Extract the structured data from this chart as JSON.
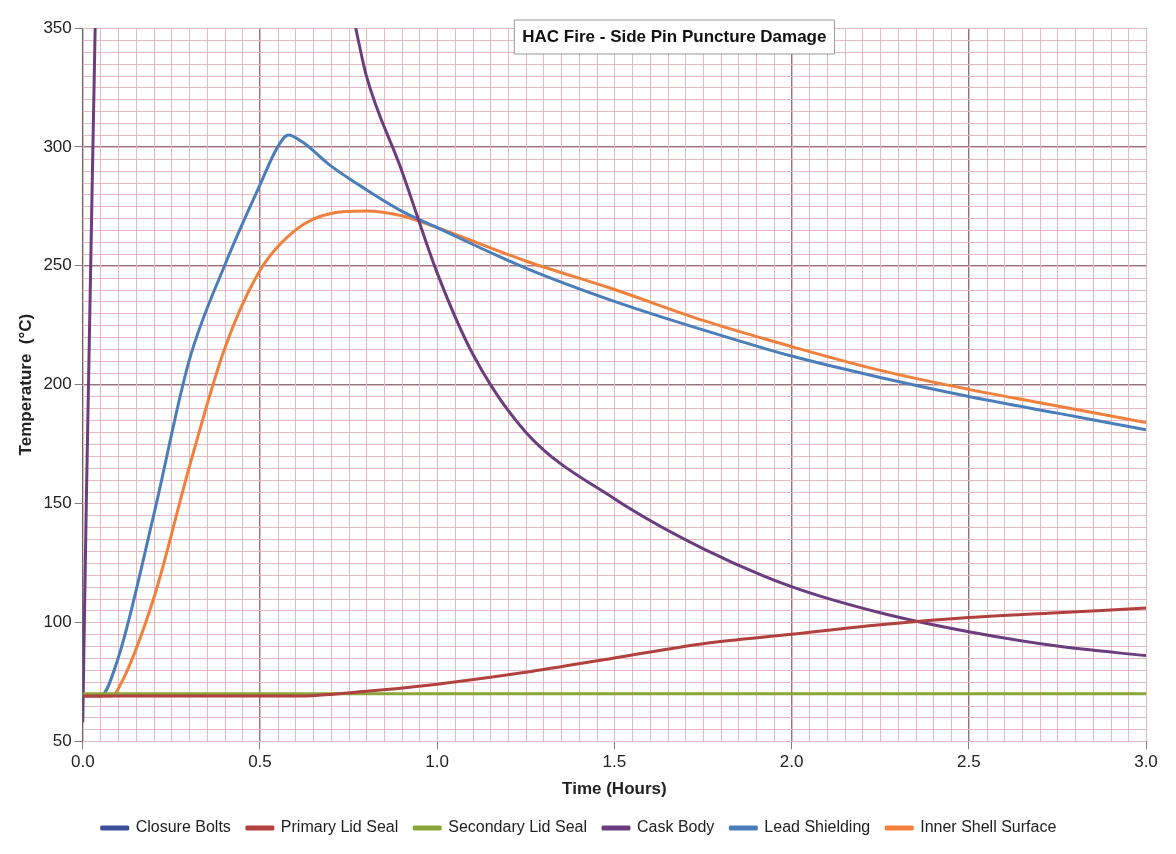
{
  "chart_data": {
    "type": "line",
    "title": "HAC Fire - Side Pin Puncture Damage",
    "xlabel": "Time (Hours)",
    "ylabel": "Temperature  (°C)",
    "xlim": [
      0,
      3
    ],
    "xticks": [
      {
        "value": 0,
        "label": "0.0"
      },
      {
        "value": 0.5,
        "label": "0.5"
      },
      {
        "value": 1,
        "label": "1.0"
      },
      {
        "value": 1.5,
        "label": "1.5"
      },
      {
        "value": 2,
        "label": "2.0"
      },
      {
        "value": 2.5,
        "label": "2.5"
      },
      {
        "value": 3,
        "label": "3.0"
      }
    ],
    "ylim": [
      50,
      350
    ],
    "yticks": [
      50,
      100,
      150,
      200,
      250,
      300,
      350
    ],
    "grid": true,
    "legend": "bottom",
    "marker": "none",
    "line_style": "solid",
    "series": [
      {
        "name": "Closure Bolts",
        "color": "#3b4f9a"
      },
      {
        "name": "Primary Lid Seal",
        "color": "#b0413e",
        "x": [
          0,
          0.6,
          0.8,
          1,
          1.25,
          1.5,
          1.75,
          2,
          2.25,
          2.5,
          2.75,
          3
        ],
        "values": [
          69,
          69,
          71,
          74,
          79,
          85,
          91,
          95,
          99,
          102,
          104,
          106
        ]
      },
      {
        "name": "Secondary Lid Seal",
        "color": "#8aa53a",
        "x": [
          0,
          3
        ],
        "values": [
          70,
          70
        ]
      },
      {
        "name": "Cask Body",
        "color": "#6b3d7e",
        "x": [
          0,
          0.01,
          0.035,
          0.4,
          0.77,
          0.8,
          0.9,
          1,
          1.1,
          1.25,
          1.5,
          1.75,
          2,
          2.25,
          2.5,
          2.75,
          3
        ],
        "values": [
          58,
          150,
          350,
          null,
          350,
          330,
          290,
          247,
          213,
          180,
          152,
          131,
          115,
          104,
          96,
          90,
          86
        ]
      },
      {
        "name": "Lead Shielding",
        "color": "#4a7ebb",
        "x": [
          0,
          0.05,
          0.1,
          0.2,
          0.3,
          0.4,
          0.5,
          0.55,
          0.58,
          0.62,
          0.7,
          0.8,
          0.9,
          1,
          1.25,
          1.5,
          1.75,
          2,
          2.25,
          2.5,
          2.75,
          3
        ],
        "values": [
          69,
          69,
          85,
          145,
          210,
          250,
          284,
          300,
          305,
          302,
          292,
          282,
          273,
          266,
          249,
          235,
          223,
          212,
          203,
          195,
          188,
          181
        ]
      },
      {
        "name": "Inner Shell Surface",
        "color": "#f0803c",
        "x": [
          0,
          0.08,
          0.1,
          0.2,
          0.3,
          0.4,
          0.5,
          0.6,
          0.7,
          0.8,
          0.9,
          1,
          1.25,
          1.5,
          1.75,
          2,
          2.25,
          2.5,
          2.75,
          3
        ],
        "values": [
          69,
          69,
          72,
          110,
          165,
          215,
          248,
          265,
          272,
          273,
          271,
          266,
          252,
          240,
          227,
          216,
          206,
          198,
          191,
          184
        ]
      }
    ]
  }
}
